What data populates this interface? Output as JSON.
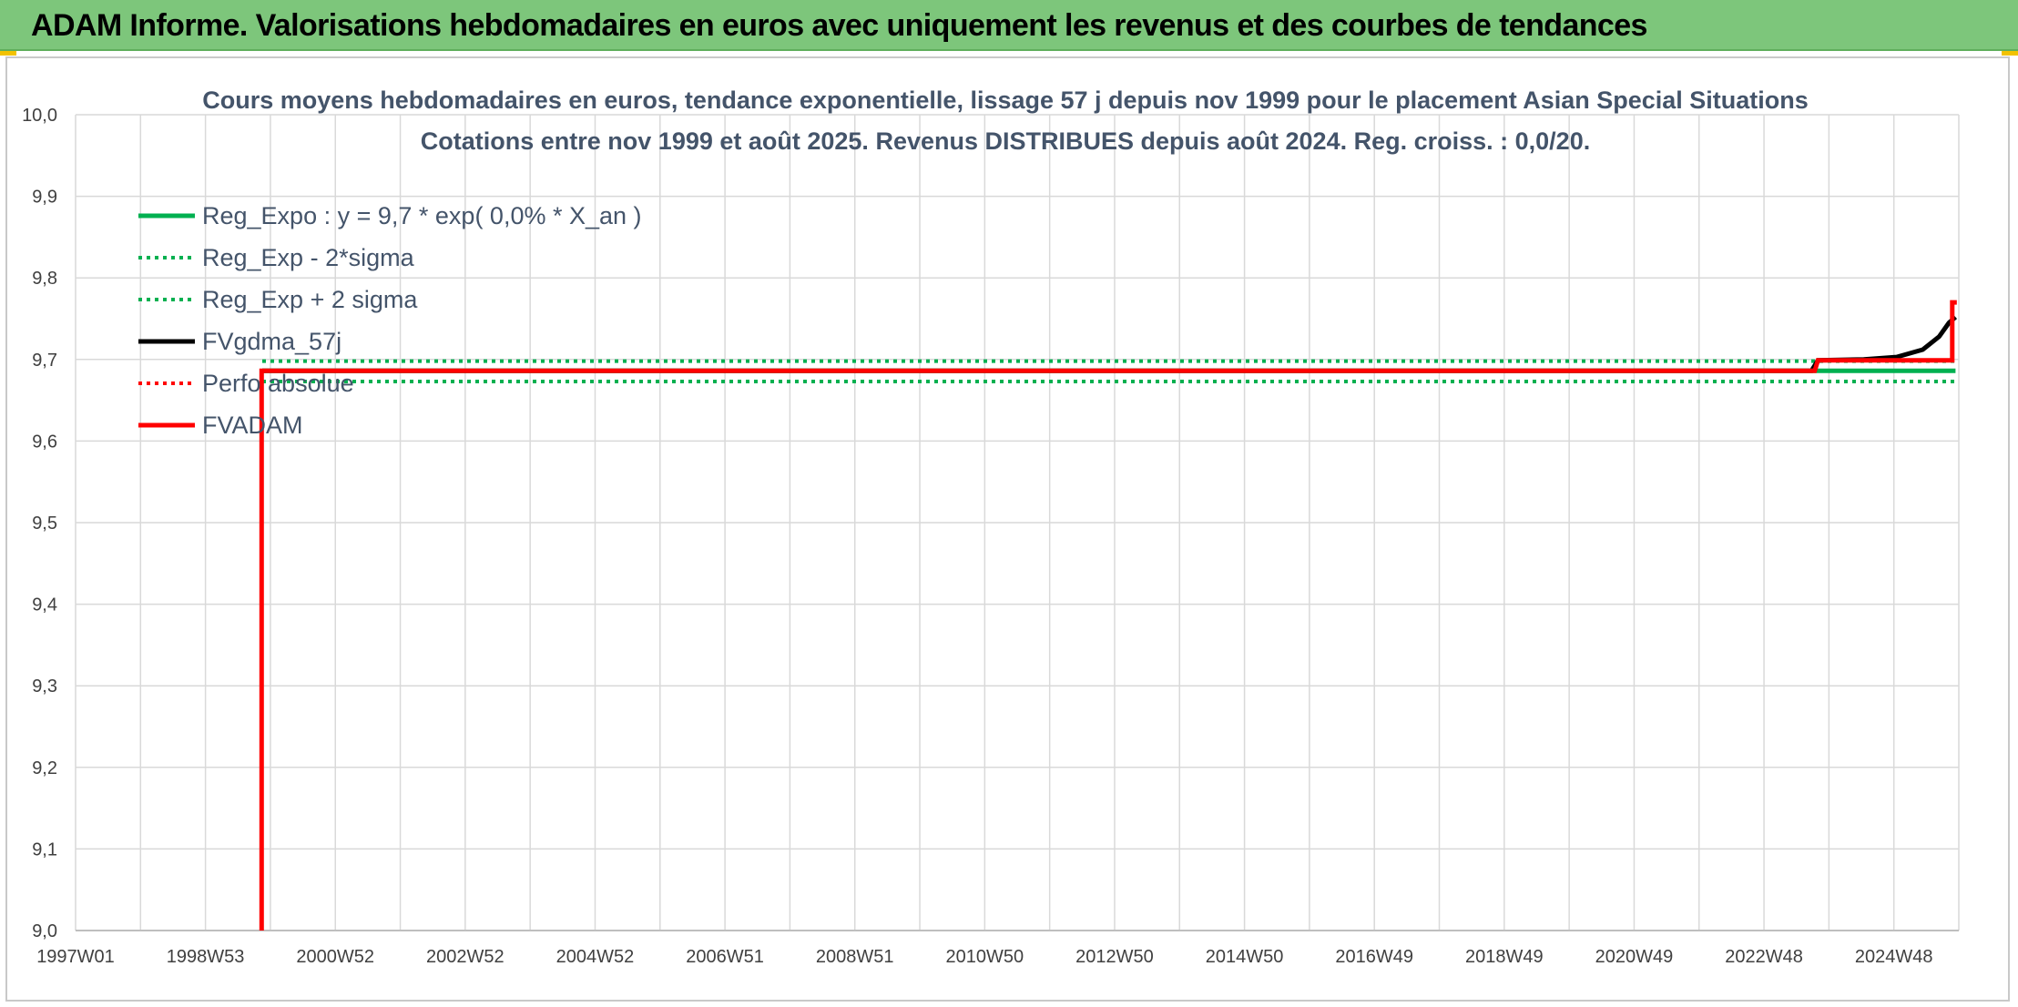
{
  "banner": {
    "title": "ADAM Informe. Valorisations hebdomadaires en euros avec uniquement les revenus et des courbes de tendances"
  },
  "colors": {
    "banner": "#7dc67b",
    "reg_expo": "#00b050",
    "fvgdma": "#000000",
    "perfo": "#ff0000",
    "fvadam": "#ff0000",
    "grid": "#d9d9d9",
    "title": "#44546a"
  },
  "chart_data": {
    "type": "line",
    "title": "Cours moyens hebdomadaires en euros, tendance exponentielle, lissage 57 j depuis nov 1999 pour le placement Asian Special Situations",
    "subtitle": "Cotations entre nov 1999 et août 2025. Revenus DISTRIBUES depuis août 2024. Reg. croiss. : 0,0/20.",
    "xlabel": "",
    "ylabel": "",
    "x_tick_labels": [
      "1997W01",
      "1998W53",
      "2000W52",
      "2002W52",
      "2004W52",
      "2006W51",
      "2008W51",
      "2010W50",
      "2012W50",
      "2014W50",
      "2016W49",
      "2018W49",
      "2020W49",
      "2022W48",
      "2024W48"
    ],
    "x_range": [
      1997.0,
      2025.75
    ],
    "y_tick_labels": [
      "9,0",
      "9,1",
      "9,2",
      "9,3",
      "9,4",
      "9,5",
      "9,6",
      "9,7",
      "9,8",
      "9,9",
      "10,0"
    ],
    "ylim": [
      9.0,
      10.0
    ],
    "grid": true,
    "legend_position": "top-left",
    "series": [
      {
        "name": "Reg_Expo : y = 9,7 * exp( 0,0% *  X_an )",
        "style": "solid",
        "color": "#00b050",
        "points": [
          [
            1999.85,
            9.686
          ],
          [
            2025.7,
            9.686
          ]
        ]
      },
      {
        "name": "Reg_Exp - 2*sigma",
        "style": "dotted",
        "color": "#00b050",
        "points": [
          [
            1999.85,
            9.673
          ],
          [
            2025.7,
            9.673
          ]
        ]
      },
      {
        "name": "Reg_Exp + 2 sigma",
        "style": "dotted",
        "color": "#00b050",
        "points": [
          [
            1999.85,
            9.698
          ],
          [
            2025.7,
            9.698
          ]
        ]
      },
      {
        "name": "FVgdma_57j",
        "style": "solid",
        "color": "#000000",
        "points": [
          [
            1999.85,
            9.686
          ],
          [
            2023.5,
            9.686
          ],
          [
            2023.6,
            9.699
          ],
          [
            2024.3,
            9.7
          ],
          [
            2024.8,
            9.703
          ],
          [
            2025.2,
            9.712
          ],
          [
            2025.45,
            9.728
          ],
          [
            2025.6,
            9.745
          ],
          [
            2025.7,
            9.752
          ]
        ]
      },
      {
        "name": "Perfo absolue",
        "style": "dotted",
        "color": "#ff0000",
        "points": []
      },
      {
        "name": "FVADAM",
        "style": "solid",
        "color": "#ff0000",
        "points": [
          [
            1999.84,
            9.0
          ],
          [
            1999.84,
            9.686
          ],
          [
            2023.55,
            9.686
          ],
          [
            2023.6,
            9.699
          ],
          [
            2025.65,
            9.699
          ],
          [
            2025.65,
            9.77
          ],
          [
            2025.72,
            9.77
          ]
        ]
      }
    ]
  }
}
